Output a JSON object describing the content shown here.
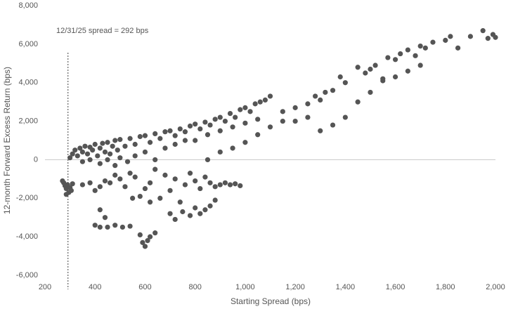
{
  "chart_data": {
    "type": "scatter",
    "x_label": "Starting Spread (bps)",
    "y_label": "12-month Forward Excess Return (bps)",
    "color": "#555555",
    "reference_line": {
      "x": 292,
      "label": "12/31/25 spread = 292 bps"
    },
    "xlim": [
      200,
      2000
    ],
    "xticks": [
      200,
      400,
      600,
      800,
      {
        "value": 1000,
        "label": "1,000"
      },
      {
        "value": 1200,
        "label": "1,200"
      },
      {
        "value": 1400,
        "label": "1,400"
      },
      {
        "value": 1600,
        "label": "1,600"
      },
      {
        "value": 1800,
        "label": "1,800"
      },
      {
        "value": 2000,
        "label": "2,000"
      }
    ],
    "ylim": [
      -6000,
      8000
    ],
    "yticks": [
      {
        "value": -6000,
        "label": "-6,000"
      },
      {
        "value": -4000,
        "label": "-4,000"
      },
      {
        "value": -2000,
        "label": "-2,000"
      },
      0,
      {
        "value": 2000,
        "label": "2,000"
      },
      {
        "value": 4000,
        "label": "4,000"
      },
      {
        "value": 6000,
        "label": "6,000"
      },
      {
        "value": 8000,
        "label": "8,000"
      }
    ],
    "x": [
      275,
      280,
      285,
      290,
      295,
      300,
      305,
      310,
      270,
      285,
      300,
      310,
      320,
      330,
      340,
      350,
      360,
      370,
      380,
      390,
      400,
      410,
      420,
      430,
      440,
      450,
      460,
      470,
      480,
      490,
      500,
      520,
      540,
      560,
      580,
      600,
      620,
      640,
      660,
      680,
      700,
      720,
      740,
      760,
      780,
      800,
      820,
      840,
      860,
      880,
      900,
      920,
      940,
      960,
      980,
      1000,
      1020,
      1040,
      1060,
      1080,
      1100,
      350,
      380,
      420,
      450,
      480,
      500,
      530,
      560,
      600,
      640,
      680,
      720,
      760,
      800,
      850,
      900,
      950,
      1000,
      1050,
      350,
      380,
      400,
      420,
      440,
      460,
      480,
      500,
      520,
      540,
      560,
      580,
      600,
      620,
      640,
      660,
      680,
      700,
      720,
      740,
      760,
      780,
      800,
      820,
      840,
      860,
      880,
      900,
      920,
      940,
      960,
      980,
      400,
      420,
      450,
      480,
      510,
      540,
      420,
      440,
      580,
      590,
      600,
      610,
      620,
      640,
      700,
      720,
      750,
      780,
      800,
      820,
      840,
      860,
      880,
      550,
      620,
      850,
      900,
      950,
      1000,
      1050,
      1100,
      1150,
      1150,
      1200,
      1250,
      1280,
      1300,
      1320,
      1350,
      1380,
      1400,
      1450,
      1480,
      1500,
      1520,
      1550,
      1570,
      1600,
      1620,
      1650,
      1680,
      1700,
      1720,
      1750,
      1800,
      1820,
      1850,
      1900,
      1950,
      1970,
      1990,
      2000,
      1200,
      1250,
      1300,
      1350,
      1400,
      1450,
      1500,
      1550,
      1600,
      1650,
      1700
    ],
    "y": [
      -1200,
      -1350,
      -1500,
      -1300,
      -1700,
      -1450,
      -1600,
      -1250,
      -1100,
      -1800,
      100,
      300,
      500,
      200,
      600,
      400,
      700,
      300,
      650,
      500,
      800,
      200,
      600,
      850,
      400,
      900,
      300,
      700,
      1000,
      500,
      1050,
      700,
      1100,
      800,
      1200,
      1250,
      900,
      1350,
      1100,
      1450,
      1500,
      1250,
      1600,
      1450,
      1750,
      1850,
      1600,
      1950,
      1800,
      2100,
      2200,
      2000,
      2400,
      2200,
      2600,
      2700,
      2500,
      2900,
      3000,
      3100,
      3300,
      -100,
      0,
      -200,
      0,
      -300,
      100,
      -100,
      200,
      400,
      0,
      600,
      800,
      1000,
      1000,
      1300,
      1500,
      1700,
      1900,
      2100,
      -1300,
      -1200,
      -1600,
      -1400,
      -1100,
      -1200,
      -800,
      -1000,
      -1400,
      -700,
      -900,
      -1900,
      -1500,
      -1200,
      -500,
      -2000,
      -800,
      -1600,
      -1000,
      -2200,
      -1300,
      -700,
      -1100,
      -1500,
      -900,
      -1200,
      -1400,
      -1300,
      -1200,
      -1300,
      -1250,
      -1350,
      -3400,
      -3500,
      -3500,
      -3400,
      -3500,
      -3450,
      -2600,
      -3000,
      -3900,
      -4300,
      -4500,
      -4200,
      -4000,
      -3800,
      -2800,
      -3100,
      -2700,
      -2900,
      -2500,
      -2800,
      -2600,
      -2400,
      -2100,
      -2000,
      -2200,
      0,
      400,
      600,
      900,
      1300,
      1700,
      2000,
      2500,
      2700,
      2900,
      3300,
      3100,
      3500,
      3600,
      4300,
      4000,
      4800,
      4500,
      4700,
      4900,
      4200,
      5300,
      5200,
      5500,
      5700,
      5400,
      5900,
      5800,
      6100,
      6200,
      6400,
      5800,
      6400,
      6700,
      6300,
      6500,
      6350,
      2000,
      2200,
      1500,
      1800,
      2200,
      3000,
      3500,
      4100,
      4300,
      4600,
      4900
    ]
  }
}
